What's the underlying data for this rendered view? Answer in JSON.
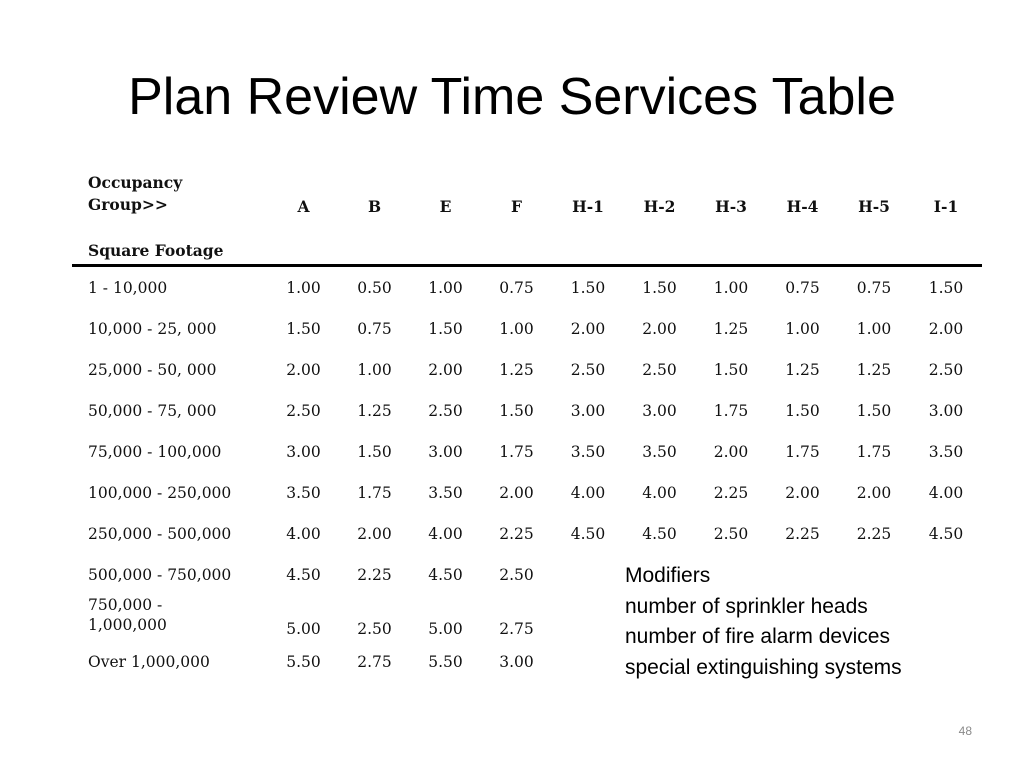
{
  "slide": {
    "title": "Plan Review Time Services Table",
    "page_number": "48"
  },
  "table": {
    "occupancy_header_line1": "Occupancy",
    "occupancy_header_line2": "Group>>",
    "square_footage_label": "Square Footage",
    "groups": [
      "A",
      "B",
      "E",
      "F",
      "H-1",
      "H-2",
      "H-3",
      "H-4",
      "H-5",
      "I-1"
    ],
    "rows": [
      {
        "range": "1 - 10,000",
        "values": [
          "1.00",
          "0.50",
          "1.00",
          "0.75",
          "1.50",
          "1.50",
          "1.00",
          "0.75",
          "0.75",
          "1.50"
        ]
      },
      {
        "range": "10,000 - 25, 000",
        "values": [
          "1.50",
          "0.75",
          "1.50",
          "1.00",
          "2.00",
          "2.00",
          "1.25",
          "1.00",
          "1.00",
          "2.00"
        ]
      },
      {
        "range": "25,000 - 50, 000",
        "values": [
          "2.00",
          "1.00",
          "2.00",
          "1.25",
          "2.50",
          "2.50",
          "1.50",
          "1.25",
          "1.25",
          "2.50"
        ]
      },
      {
        "range": "50,000 - 75, 000",
        "values": [
          "2.50",
          "1.25",
          "2.50",
          "1.50",
          "3.00",
          "3.00",
          "1.75",
          "1.50",
          "1.50",
          "3.00"
        ]
      },
      {
        "range": "75,000 - 100,000",
        "values": [
          "3.00",
          "1.50",
          "3.00",
          "1.75",
          "3.50",
          "3.50",
          "2.00",
          "1.75",
          "1.75",
          "3.50"
        ]
      },
      {
        "range": "100,000 - 250,000",
        "values": [
          "3.50",
          "1.75",
          "3.50",
          "2.00",
          "4.00",
          "4.00",
          "2.25",
          "2.00",
          "2.00",
          "4.00"
        ]
      },
      {
        "range": "250,000 - 500,000",
        "values": [
          "4.00",
          "2.00",
          "4.00",
          "2.25",
          "4.50",
          "4.50",
          "2.50",
          "2.25",
          "2.25",
          "4.50"
        ]
      },
      {
        "range": "500,000 - 750,000",
        "values": [
          "4.50",
          "2.25",
          "4.50",
          "2.50",
          "",
          "",
          "",
          "",
          "",
          ""
        ]
      },
      {
        "range": "750,000 - 1,000,000",
        "values": [
          "5.00",
          "2.50",
          "5.00",
          "2.75",
          "",
          "",
          "",
          "",
          "",
          ""
        ]
      },
      {
        "range": "Over 1,000,000",
        "values": [
          "5.50",
          "2.75",
          "5.50",
          "3.00",
          "",
          "",
          "",
          "",
          "",
          ""
        ]
      }
    ]
  },
  "modifiers": {
    "heading": "Modifiers",
    "items": [
      "number of sprinkler heads",
      "number of fire alarm devices",
      "special extinguishing systems"
    ]
  }
}
